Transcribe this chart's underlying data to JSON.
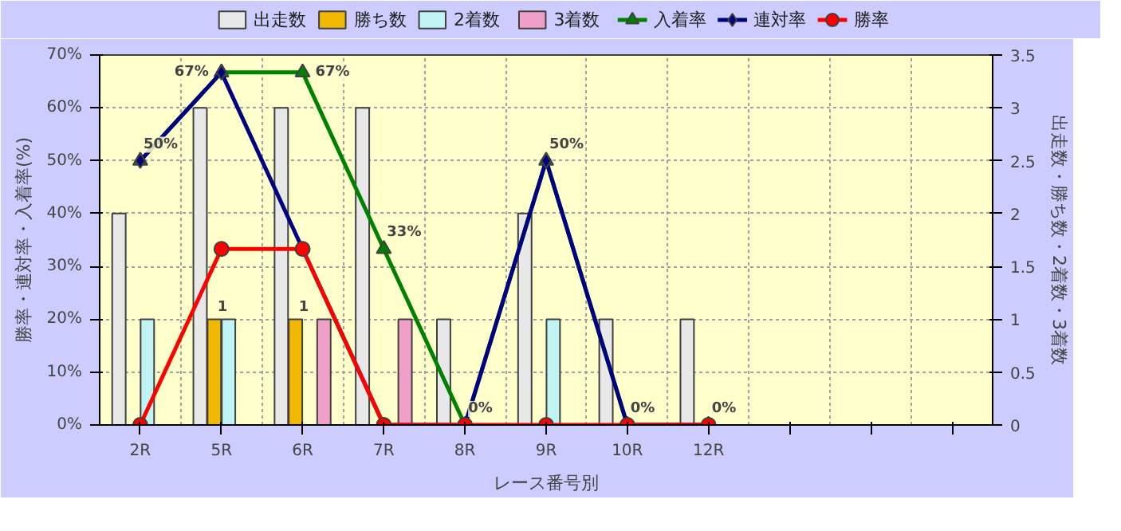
{
  "chart_data": {
    "type": "bar",
    "categories": [
      "2R",
      "5R",
      "6R",
      "7R",
      "8R",
      "9R",
      "10R",
      "12R",
      null,
      null,
      null
    ],
    "xlabel": "レース番号別",
    "ylabel": "勝率・連対率・入着率(%)",
    "y2label": "出走数・勝ち数・2着数・3着数",
    "ylim": [
      0,
      70
    ],
    "yticks": [
      {
        "value": 0,
        "label": "0%"
      },
      {
        "value": 10,
        "label": "10%"
      },
      {
        "value": 20,
        "label": "20%"
      },
      {
        "value": 30,
        "label": "30%"
      },
      {
        "value": 40,
        "label": "40%"
      },
      {
        "value": 50,
        "label": "50%"
      },
      {
        "value": 60,
        "label": "60%"
      },
      {
        "value": 70,
        "label": "70%"
      }
    ],
    "y2lim": [
      0,
      3.5
    ],
    "y2ticks": [
      0,
      0.5,
      1,
      1.5,
      2,
      2.5,
      3,
      3.5
    ],
    "grid": true,
    "legend": "top",
    "series": [
      {
        "name": "出走数",
        "axis": "y2",
        "color": "#e8e8e8",
        "values": [
          2,
          3,
          3,
          3,
          1,
          2,
          1,
          1,
          null,
          null,
          null
        ]
      },
      {
        "name": "勝ち数",
        "axis": "y2",
        "color": "#f0b800",
        "values": [
          0,
          1,
          1,
          0,
          0,
          0,
          0,
          0,
          null,
          null,
          null
        ],
        "value_labels": [
          null,
          "1",
          "1",
          null,
          null,
          null,
          null,
          null,
          null,
          null,
          null
        ]
      },
      {
        "name": "2着数",
        "axis": "y2",
        "color": "#c0f4f4",
        "values": [
          1,
          1,
          0,
          0,
          0,
          1,
          0,
          0,
          null,
          null,
          null
        ]
      },
      {
        "name": "3着数",
        "axis": "y2",
        "color": "#f0a0c8",
        "values": [
          0,
          0,
          1,
          1,
          0,
          0,
          0,
          0,
          null,
          null,
          null
        ]
      },
      {
        "name": "入着率",
        "type": "line",
        "marker": "triangle",
        "color": "#008000",
        "values": [
          50,
          66.7,
          66.7,
          33.3,
          0,
          50,
          0,
          0,
          null,
          null,
          null
        ],
        "value_labels": [
          "50%",
          "67%",
          "67%",
          "33%",
          "0%",
          "50%",
          "0%",
          "0%",
          null,
          null,
          null
        ]
      },
      {
        "name": "連対率",
        "type": "line",
        "marker": "diamond",
        "color": "#000080",
        "values": [
          50,
          66.7,
          33.3,
          0,
          0,
          50,
          0,
          0,
          null,
          null,
          null
        ]
      },
      {
        "name": "勝率",
        "type": "line",
        "marker": "circle",
        "color": "#ff0000",
        "values": [
          0,
          33.3,
          33.3,
          0,
          0,
          0,
          0,
          0,
          null,
          null,
          null
        ]
      }
    ]
  }
}
